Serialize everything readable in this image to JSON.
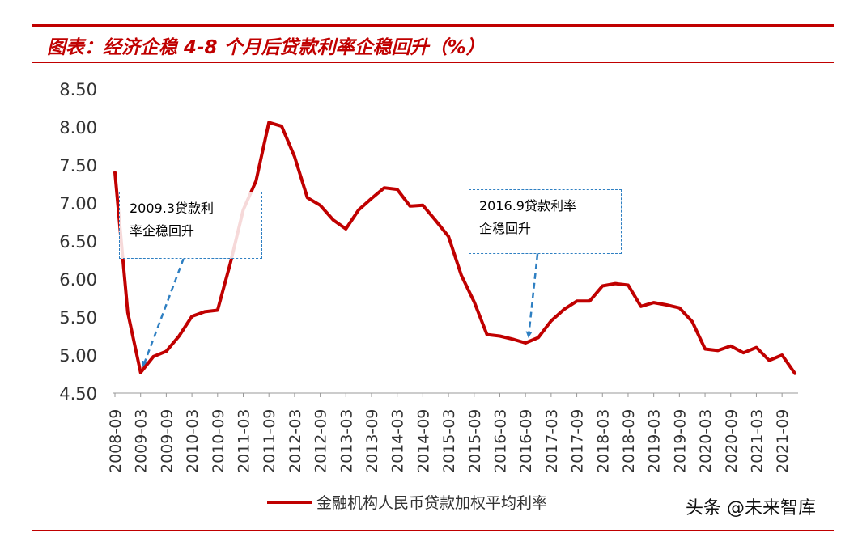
{
  "title": "图表：经济企稳 4-8 个月后贷款利率企稳回升（%）",
  "watermark": "头条 @未来智库",
  "annotations": [
    {
      "id": "a1",
      "line1": "2009.3贷款利",
      "line2": "率企稳回升",
      "target_x": "2009-03"
    },
    {
      "id": "a2",
      "line1": "2016.9贷款利率",
      "line2": "企稳回升",
      "target_x": "2016-09"
    }
  ],
  "chart_data": {
    "type": "line",
    "xlabel": "",
    "ylabel": "",
    "ylim": [
      4.5,
      8.5
    ],
    "yticks": [
      "4.50",
      "5.00",
      "5.50",
      "6.00",
      "6.50",
      "7.00",
      "7.50",
      "8.00",
      "8.50"
    ],
    "categories": [
      "2008-09",
      "2008-12",
      "2009-03",
      "2009-06",
      "2009-09",
      "2009-12",
      "2010-03",
      "2010-06",
      "2010-09",
      "2010-12",
      "2011-03",
      "2011-06",
      "2011-09",
      "2011-12",
      "2012-03",
      "2012-06",
      "2012-09",
      "2012-12",
      "2013-03",
      "2013-06",
      "2013-09",
      "2013-12",
      "2014-03",
      "2014-06",
      "2014-09",
      "2014-12",
      "2015-03",
      "2015-06",
      "2015-09",
      "2015-12",
      "2016-03",
      "2016-06",
      "2016-09",
      "2016-12",
      "2017-03",
      "2017-06",
      "2017-09",
      "2017-12",
      "2018-03",
      "2018-06",
      "2018-09",
      "2018-12",
      "2019-03",
      "2019-06",
      "2019-09",
      "2019-12",
      "2020-03",
      "2020-06",
      "2020-09",
      "2020-12",
      "2021-03",
      "2021-06",
      "2021-09",
      "2021-12"
    ],
    "tick_labels": [
      "2008-09",
      "2009-03",
      "2009-09",
      "2010-03",
      "2010-09",
      "2011-03",
      "2011-09",
      "2012-03",
      "2012-09",
      "2013-03",
      "2013-09",
      "2014-03",
      "2014-09",
      "2015-03",
      "2015-09",
      "2016-03",
      "2016-09",
      "2017-03",
      "2017-09",
      "2018-03",
      "2018-09",
      "2019-03",
      "2019-09",
      "2020-03",
      "2020-09",
      "2021-03",
      "2021-09"
    ],
    "series": [
      {
        "name": "金融机构人民币贷款加权平均利率",
        "color": "#c00000",
        "values": [
          7.4,
          5.56,
          4.77,
          4.98,
          5.05,
          5.25,
          5.51,
          5.57,
          5.59,
          6.21,
          6.91,
          7.29,
          8.06,
          8.01,
          7.61,
          7.07,
          6.97,
          6.78,
          6.66,
          6.91,
          7.06,
          7.2,
          7.18,
          6.96,
          6.97,
          6.77,
          6.56,
          6.05,
          5.7,
          5.27,
          5.25,
          5.21,
          5.16,
          5.23,
          5.45,
          5.6,
          5.71,
          5.71,
          5.91,
          5.94,
          5.92,
          5.64,
          5.69,
          5.66,
          5.62,
          5.44,
          5.08,
          5.06,
          5.12,
          5.03,
          5.1,
          4.93,
          5.0,
          4.76
        ]
      }
    ],
    "legend": "bottom-center",
    "grid": false
  }
}
